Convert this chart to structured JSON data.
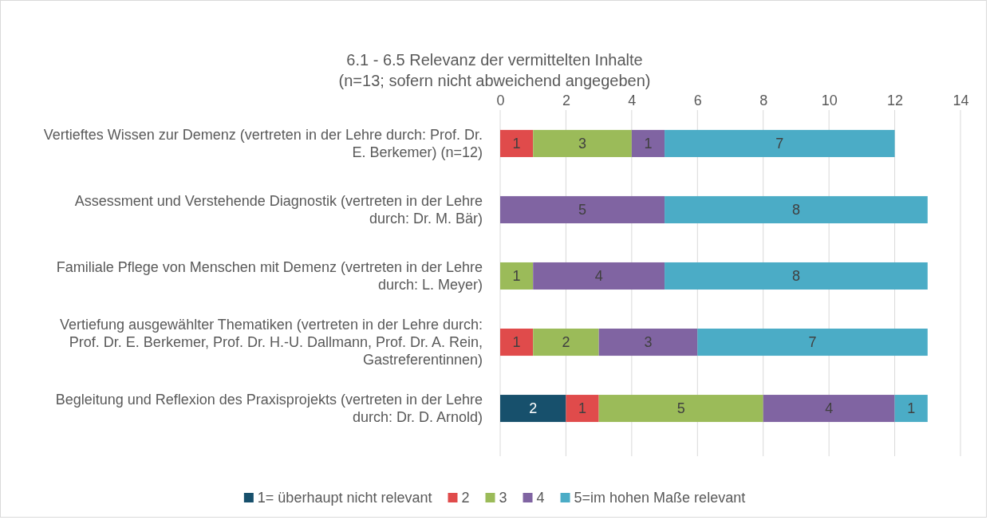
{
  "chart_data": {
    "type": "bar",
    "orientation": "horizontal",
    "stacked": true,
    "title": "6.1 - 6.5 Relevanz der vermittelten Inhalte",
    "subtitle": "(n=13; sofern nicht abweichend angegeben)",
    "categories": [
      "Vertieftes Wissen zur Demenz (vertreten in der Lehre durch: Prof. Dr. E. Berkemer) (n=12)",
      "Assessment und Verstehende Diagnostik (vertreten in der Lehre durch: Dr. M. Bär)",
      "Familiale Pflege von Menschen mit Demenz (vertreten in der Lehre durch: L. Meyer)",
      "Vertiefung ausgewählter Thematiken (vertreten in der Lehre durch: Prof. Dr. E. Berkemer, Prof. Dr. H.-U. Dallmann, Prof. Dr. A. Rein, Gastreferentinnen)",
      "Begleitung und Reflexion des Praxisprojekts (vertreten in der Lehre durch: Dr. D. Arnold)"
    ],
    "series": [
      {
        "name": "1= überhaupt nicht relevant",
        "color": "#17506c",
        "values": [
          null,
          null,
          null,
          null,
          2
        ]
      },
      {
        "name": "2",
        "color": "#e04b4b",
        "values": [
          1,
          null,
          null,
          1,
          1
        ]
      },
      {
        "name": "3",
        "color": "#9bbb59",
        "values": [
          3,
          null,
          1,
          2,
          5
        ]
      },
      {
        "name": "4",
        "color": "#8064a2",
        "values": [
          1,
          5,
          4,
          3,
          4
        ]
      },
      {
        "name": "5=im hohen Maße relevant",
        "color": "#4bacc6",
        "values": [
          7,
          8,
          8,
          7,
          1
        ]
      }
    ],
    "xlim": [
      0,
      14
    ],
    "xticks": [
      0,
      2,
      4,
      6,
      8,
      10,
      12,
      14
    ],
    "grid": "x",
    "data_labels": true,
    "legend": "bottom"
  }
}
